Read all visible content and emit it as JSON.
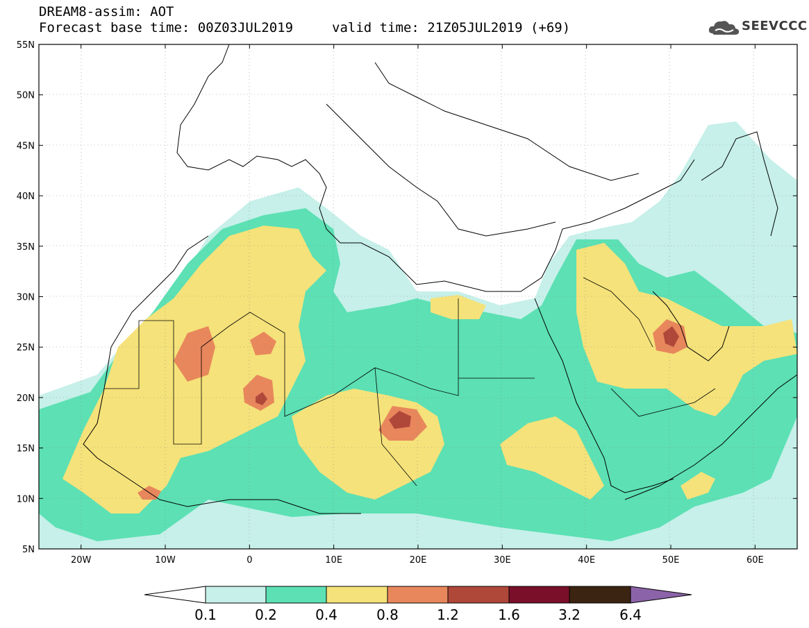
{
  "header": {
    "line1": "DREAM8-assim: AOT",
    "line2": "Forecast base time: 00Z03JUL2019",
    "valid": "valid time: 21Z05JUL2019 (+69)",
    "logo": "SEEVCCC"
  },
  "map": {
    "lon_range": [
      -25,
      65
    ],
    "lat_range": [
      5,
      55
    ],
    "lat_ticks": [
      "5N",
      "10N",
      "15N",
      "20N",
      "25N",
      "30N",
      "35N",
      "40N",
      "45N",
      "50N",
      "55N"
    ],
    "lat_values": [
      5,
      10,
      15,
      20,
      25,
      30,
      35,
      40,
      45,
      50,
      55
    ],
    "lon_ticks": [
      "20W",
      "10W",
      "0",
      "10E",
      "20E",
      "30E",
      "40E",
      "50E",
      "60E"
    ],
    "lon_values": [
      -20,
      -10,
      0,
      10,
      20,
      30,
      40,
      50,
      60
    ]
  },
  "legend": {
    "labels": [
      "0.1",
      "0.2",
      "0.4",
      "0.8",
      "1.2",
      "1.6",
      "3.2",
      "6.4"
    ],
    "colors": [
      "#ffffff",
      "#c6f0e9",
      "#5ce0b4",
      "#f5e27a",
      "#e8875c",
      "#b0483a",
      "#7a0f2a",
      "#3c2412",
      "#8b63a8"
    ]
  }
}
